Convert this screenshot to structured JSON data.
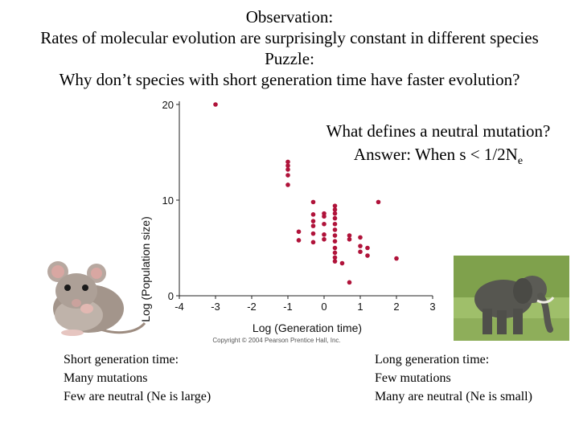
{
  "slide": {
    "header": {
      "line1": "Observation:",
      "line2": "Rates of molecular evolution are surprisingly constant in different species",
      "line3": "Puzzle:",
      "line4": "Why don’t species with short generation time have faster evolution?"
    },
    "question": {
      "line1": "What defines a neutral mutation?",
      "line2_prefix": "Answer: When s < 1/2N",
      "line2_sub": "e"
    },
    "left_caption": {
      "line1": "Short generation time:",
      "line2": "Many mutations",
      "line3": "Few are neutral (Ne is large)"
    },
    "right_caption": {
      "line1": "Long generation time:",
      "line2": "Few mutations",
      "line3": "Many are neutral (Ne is small)"
    },
    "copyright": "Copyright © 2004 Pearson Prentice Hall, Inc.",
    "images": [
      "mouse",
      "elephant"
    ]
  },
  "chart_data": {
    "type": "scatter",
    "title": "",
    "xlabel": "Log (Generation time)",
    "ylabel": "Log (Population size)",
    "xlim": [
      -4,
      3
    ],
    "ylim": [
      0,
      20
    ],
    "xticks": [
      -4,
      -3,
      -2,
      -1,
      0,
      1,
      2,
      3
    ],
    "yticks": [
      0,
      10,
      20
    ],
    "grid": false,
    "marker_color": "#b0133a",
    "series": [
      {
        "x": [
          -3.0,
          -1.0,
          -1.0,
          -1.0,
          -1.0,
          -1.0,
          -0.7,
          -0.7,
          -0.3,
          -0.3,
          -0.3,
          -0.3,
          -0.3,
          -0.3,
          0.0,
          0.0,
          0.0,
          0.0,
          0.0,
          0.3,
          0.3,
          0.3,
          0.3,
          0.3,
          0.3,
          0.3,
          0.3,
          0.3,
          0.3,
          0.3,
          0.3,
          0.5,
          0.7,
          0.7,
          0.7,
          1.0,
          1.0,
          1.0,
          1.2,
          1.2,
          1.5,
          2.0
        ],
        "y": [
          20.0,
          14.0,
          13.6,
          13.2,
          12.6,
          11.6,
          6.7,
          5.8,
          9.8,
          8.5,
          7.8,
          7.3,
          6.5,
          5.6,
          8.6,
          8.3,
          7.5,
          6.4,
          5.9,
          9.4,
          9.0,
          8.6,
          8.1,
          7.5,
          6.9,
          6.3,
          5.7,
          5.0,
          4.5,
          4.0,
          3.6,
          3.4,
          6.3,
          5.9,
          1.4,
          6.1,
          5.2,
          4.6,
          5.0,
          4.2,
          9.8,
          3.9
        ]
      }
    ]
  }
}
